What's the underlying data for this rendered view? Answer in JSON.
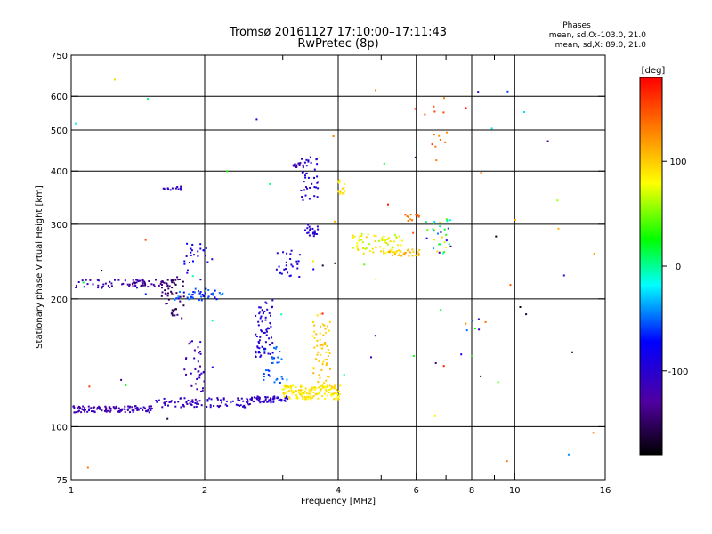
{
  "chart_data": {
    "type": "scatter",
    "title": "Tromsø 20161127 17:10:00–17:11:43",
    "subtitle": "RwPretec (8p)",
    "xlabel": "Frequency [MHz]",
    "ylabel": "Stationary phase Virtual Height [km]",
    "x_scale": "log",
    "y_scale": "log",
    "xlim": [
      1,
      16
    ],
    "ylim": [
      75,
      750
    ],
    "x_ticks": [
      1,
      2,
      4,
      6,
      8,
      10,
      16
    ],
    "x_gridlines": [
      2,
      4,
      6,
      8,
      10
    ],
    "x_minor_ticks": [
      3,
      5,
      7,
      9
    ],
    "y_ticks": [
      75,
      100,
      200,
      300,
      400,
      500,
      600,
      750
    ],
    "y_gridlines": [
      100,
      200,
      300,
      400,
      500,
      600
    ],
    "grid": true,
    "phases_info": {
      "heading": "Phases",
      "line1": "mean, sd,O:-103.0, 21.0",
      "line2": "mean, sd,X:  89.0, 21.0"
    },
    "colorbar": {
      "label": "[deg]",
      "range": [
        -180,
        180
      ],
      "ticks": [
        100,
        0,
        -100
      ],
      "colormap": [
        "#000000",
        "#5000a0",
        "#0000ff",
        "#00ffff",
        "#00ff00",
        "#ffff00",
        "#ff8000",
        "#ff0000"
      ]
    },
    "clusters": [
      {
        "f": [
          1.0,
          1.55
        ],
        "h": [
          108,
          112
        ],
        "n": 110,
        "ph": [
          -130,
          -100
        ]
      },
      {
        "f": [
          1.55,
          2.55
        ],
        "h": [
          111,
          117
        ],
        "n": 90,
        "ph": [
          -120,
          -95
        ]
      },
      {
        "f": [
          2.55,
          3.1
        ],
        "h": [
          114,
          118
        ],
        "n": 60,
        "ph": [
          -115,
          -95
        ]
      },
      {
        "f": [
          3.0,
          4.05
        ],
        "h": [
          116,
          125
        ],
        "n": 140,
        "ph": [
          75,
          100
        ]
      },
      {
        "f": [
          1.0,
          1.5
        ],
        "h": [
          212,
          222
        ],
        "n": 40,
        "ph": [
          -120,
          -105
        ]
      },
      {
        "f": [
          1.35,
          1.7
        ],
        "h": [
          214,
          222
        ],
        "n": 40,
        "ph": [
          -150,
          -120
        ]
      },
      {
        "f": [
          1.6,
          1.8
        ],
        "h": [
          180,
          225
        ],
        "n": 45,
        "ph": [
          -160,
          -135
        ]
      },
      {
        "f": [
          1.7,
          2.2
        ],
        "h": [
          198,
          212
        ],
        "n": 45,
        "ph": [
          -80,
          -40
        ]
      },
      {
        "f": [
          1.8,
          2.1
        ],
        "h": [
          220,
          270
        ],
        "n": 25,
        "ph": [
          -110,
          -70
        ]
      },
      {
        "f": [
          1.8,
          2.0
        ],
        "h": [
          115,
          160
        ],
        "n": 35,
        "ph": [
          -130,
          -100
        ]
      },
      {
        "f": [
          2.6,
          2.85
        ],
        "h": [
          145,
          200
        ],
        "n": 70,
        "ph": [
          -110,
          -85
        ]
      },
      {
        "f": [
          2.7,
          3.0
        ],
        "h": [
          125,
          155
        ],
        "n": 30,
        "ph": [
          -70,
          -40
        ]
      },
      {
        "f": [
          2.9,
          3.3
        ],
        "h": [
          225,
          260
        ],
        "n": 25,
        "ph": [
          -110,
          -80
        ]
      },
      {
        "f": [
          3.3,
          3.6
        ],
        "h": [
          340,
          440
        ],
        "n": 40,
        "ph": [
          -110,
          -85
        ]
      },
      {
        "f": [
          3.35,
          3.6
        ],
        "h": [
          280,
          300
        ],
        "n": 20,
        "ph": [
          -110,
          -90
        ]
      },
      {
        "f": [
          3.15,
          3.35
        ],
        "h": [
          408,
          418
        ],
        "n": 15,
        "ph": [
          -125,
          -105
        ]
      },
      {
        "f": [
          3.5,
          3.85
        ],
        "h": [
          125,
          185
        ],
        "n": 60,
        "ph": [
          90,
          110
        ]
      },
      {
        "f": [
          1.6,
          1.8
        ],
        "h": [
          360,
          368
        ],
        "n": 12,
        "ph": [
          -115,
          -95
        ]
      },
      {
        "f": [
          4.3,
          5.6
        ],
        "h": [
          255,
          285
        ],
        "n": 70,
        "ph": [
          60,
          100
        ]
      },
      {
        "f": [
          5.2,
          6.1
        ],
        "h": [
          252,
          262
        ],
        "n": 30,
        "ph": [
          90,
          120
        ]
      },
      {
        "f": [
          5.6,
          6.1
        ],
        "h": [
          305,
          316
        ],
        "n": 12,
        "ph": [
          120,
          150
        ]
      },
      {
        "f": [
          6.3,
          7.2
        ],
        "h": [
          255,
          310
        ],
        "n": 35,
        "ph": [
          -130,
          100
        ]
      },
      {
        "f": [
          4.0,
          4.15
        ],
        "h": [
          350,
          385
        ],
        "n": 14,
        "ph": [
          80,
          100
        ]
      },
      {
        "f": [
          6.5,
          7.1
        ],
        "h": [
          420,
          600
        ],
        "n": 12,
        "ph": [
          120,
          160
        ]
      },
      {
        "f": [
          7.5,
          8.6
        ],
        "h": [
          168,
          180
        ],
        "n": 7,
        "ph": [
          -150,
          150
        ]
      }
    ],
    "sparse_region": {
      "f": [
        1.0,
        16.0
      ],
      "h": [
        80,
        700
      ],
      "n": 70
    }
  }
}
